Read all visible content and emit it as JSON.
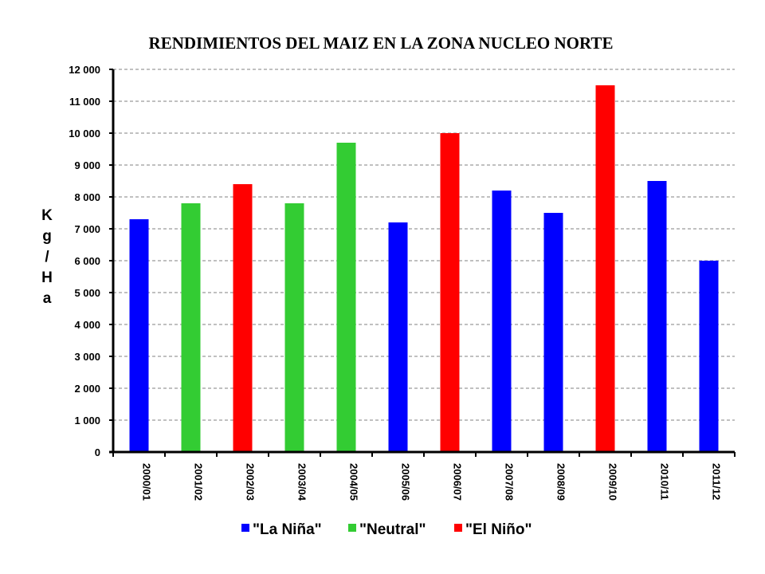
{
  "chart_data": {
    "type": "bar",
    "title": "RENDIMIENTOS DEL MAIZ EN LA ZONA NUCLEO NORTE",
    "ylabel": "Kg/Ha",
    "ylabel_chars": [
      "K",
      "g",
      "/",
      "H",
      "a"
    ],
    "xlabel": "",
    "ylim": [
      0,
      12000
    ],
    "ytick_labels": [
      "0",
      "1 000",
      "2 000",
      "3 000",
      "4 000",
      "5 000",
      "6 000",
      "7 000",
      "8 000",
      "9 000",
      "10 000",
      "11 000",
      "12 000"
    ],
    "grid": "horizontal dashed",
    "legend_position": "bottom",
    "categories": [
      "2000/01",
      "2001/02",
      "2002/03",
      "2003/04",
      "2004/05",
      "2005/06",
      "2006/07",
      "2007/08",
      "2008/09",
      "2009/10",
      "2010/11",
      "2011/12"
    ],
    "values": [
      7300,
      7800,
      8400,
      7800,
      9700,
      7200,
      10000,
      8200,
      7500,
      11500,
      8500,
      6000
    ],
    "phases": [
      "La Niña",
      "Neutral",
      "El Niño",
      "Neutral",
      "Neutral",
      "La Niña",
      "El Niño",
      "La Niña",
      "La Niña",
      "El Niño",
      "La Niña",
      "La Niña"
    ],
    "legend": [
      {
        "name": "\"La Niña\"",
        "key": "La Niña",
        "color": "#0000ff"
      },
      {
        "name": "\"Neutral\"",
        "key": "Neutral",
        "color": "#33cc33"
      },
      {
        "name": "\"El Niño\"",
        "key": "El Niño",
        "color": "#ff0000"
      }
    ]
  }
}
